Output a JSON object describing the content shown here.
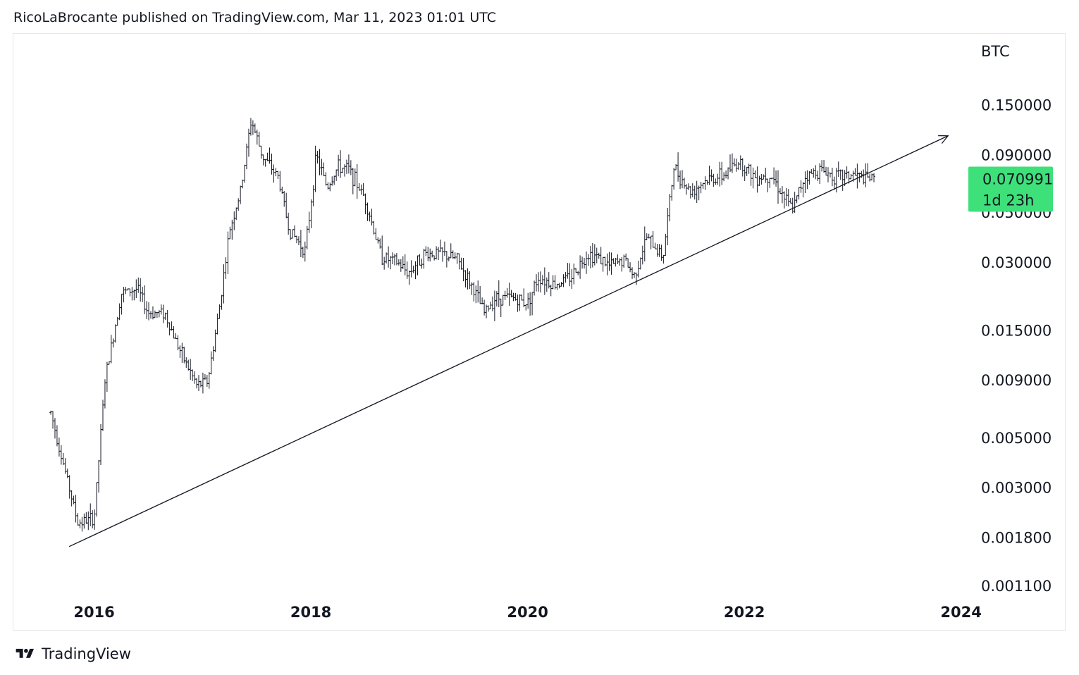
{
  "header": {
    "text": "RicoLaBrocante published on TradingView.com, Mar 11, 2023 01:01 UTC"
  },
  "footer": {
    "brand": "TradingView",
    "logo_icon": "tradingview-logo-icon"
  },
  "chart_data": {
    "type": "bar",
    "title": "",
    "ylabel": "BTC",
    "y_scale": "log",
    "ylim": [
      0.00098,
      0.21
    ],
    "xlim": [
      2015.45,
      2024.1
    ],
    "x_ticks": [
      "2016",
      "2018",
      "2020",
      "2022",
      "2024"
    ],
    "x_tick_values": [
      2016,
      2018,
      2020,
      2022,
      2024
    ],
    "y_ticks": [
      "0.150000",
      "0.090000",
      "0.050000",
      "0.030000",
      "0.015000",
      "0.009000",
      "0.005000",
      "0.003000",
      "0.001800",
      "0.001100"
    ],
    "y_tick_values": [
      0.15,
      0.09,
      0.05,
      0.03,
      0.015,
      0.009,
      0.005,
      0.003,
      0.0018,
      0.0011
    ],
    "last_price": {
      "value": "0.070991",
      "countdown": "1d 23h",
      "color": "#3ee07a"
    },
    "series": [
      {
        "bar_color": "#131722",
        "x": [
          2015.6,
          2015.75,
          2015.85,
          2016.0,
          2016.1,
          2016.25,
          2016.4,
          2016.5,
          2016.65,
          2016.8,
          2016.95,
          2017.05,
          2017.15,
          2017.25,
          2017.35,
          2017.45,
          2017.55,
          2017.7,
          2017.8,
          2017.95,
          2018.05,
          2018.15,
          2018.25,
          2018.35,
          2018.5,
          2018.65,
          2018.8,
          2018.9,
          2019.05,
          2019.2,
          2019.35,
          2019.5,
          2019.6,
          2019.7,
          2019.85,
          2020.0,
          2020.1,
          2020.25,
          2020.4,
          2020.55,
          2020.65,
          2020.75,
          2020.9,
          2020.98,
          2021.1,
          2021.25,
          2021.35,
          2021.5,
          2021.65,
          2021.8,
          2021.95,
          2022.1,
          2022.25,
          2022.4,
          2022.45,
          2022.55,
          2022.7,
          2022.85,
          2023.0,
          2023.1,
          2023.2
        ],
        "values": [
          0.0065,
          0.0033,
          0.0021,
          0.0022,
          0.009,
          0.022,
          0.023,
          0.018,
          0.018,
          0.012,
          0.0085,
          0.009,
          0.018,
          0.042,
          0.062,
          0.13,
          0.09,
          0.072,
          0.042,
          0.034,
          0.09,
          0.065,
          0.08,
          0.078,
          0.058,
          0.032,
          0.03,
          0.027,
          0.033,
          0.033,
          0.031,
          0.023,
          0.018,
          0.021,
          0.021,
          0.02,
          0.026,
          0.024,
          0.026,
          0.033,
          0.032,
          0.029,
          0.031,
          0.026,
          0.039,
          0.032,
          0.08,
          0.062,
          0.07,
          0.073,
          0.085,
          0.072,
          0.074,
          0.055,
          0.052,
          0.072,
          0.078,
          0.072,
          0.074,
          0.071,
          0.070991
        ]
      }
    ],
    "trendline": {
      "start": {
        "x": 2015.77,
        "y": 0.00165
      },
      "end": {
        "x": 2023.88,
        "y": 0.11
      },
      "arrow": true
    }
  }
}
